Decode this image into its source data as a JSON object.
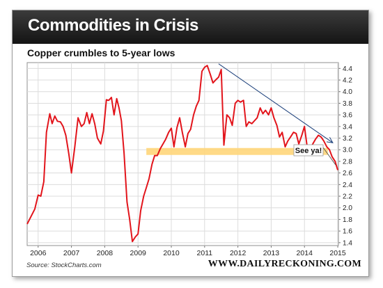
{
  "header": {
    "title": "Commodities in Crisis"
  },
  "footer": {
    "source": "Source: StockCharts.com",
    "website": "WWW.DAILYRECKONING.COM"
  },
  "colors": {
    "line": "#e2141b",
    "band": "#ffd67a",
    "arrow": "#1b3f7a",
    "banner": "#1f1f1f"
  },
  "chart_data": {
    "type": "line",
    "title": "Copper crumbles to 5-year lows",
    "xlabel": "",
    "ylabel": "",
    "ylim": [
      1.35,
      4.5
    ],
    "xlim": [
      2005.67,
      2015.02
    ],
    "y_axis_position": "right",
    "grid": true,
    "x_ticks": [
      2006,
      2007,
      2008,
      2009,
      2010,
      2011,
      2012,
      2013,
      2014,
      2015
    ],
    "x_tick_labels": [
      "2006",
      "2007",
      "2008",
      "2009",
      "2010",
      "2011",
      "2012",
      "2013",
      "2014",
      "2015"
    ],
    "y_ticks": [
      1.4,
      1.6,
      1.8,
      2.0,
      2.2,
      2.4,
      2.6,
      2.8,
      3.0,
      3.2,
      3.4,
      3.6,
      3.8,
      4.0,
      4.2,
      4.4
    ],
    "y_tick_labels": [
      "1.4",
      "1.6",
      "1.8",
      "2.0",
      "2.2",
      "2.4",
      "2.6",
      "2.8",
      "3.0",
      "3.2",
      "3.4",
      "3.6",
      "3.8",
      "4.0",
      "4.2",
      "4.4"
    ],
    "series": [
      {
        "x": [
          2005.67,
          2005.9,
          2006.0,
          2006.08,
          2006.17,
          2006.25,
          2006.35,
          2006.42,
          2006.5,
          2006.58,
          2006.67,
          2006.75,
          2006.83,
          2006.92,
          2007.0,
          2007.1,
          2007.2,
          2007.3,
          2007.38,
          2007.46,
          2007.54,
          2007.62,
          2007.7,
          2007.78,
          2007.88,
          2007.96,
          2008.05,
          2008.12,
          2008.2,
          2008.28,
          2008.36,
          2008.43,
          2008.5,
          2008.58,
          2008.67,
          2008.75,
          2008.83,
          2008.92,
          2009.0,
          2009.08,
          2009.17,
          2009.25,
          2009.33,
          2009.42,
          2009.5,
          2009.58,
          2009.67,
          2009.75,
          2009.83,
          2009.92,
          2010.0,
          2010.08,
          2010.17,
          2010.25,
          2010.33,
          2010.42,
          2010.5,
          2010.58,
          2010.67,
          2010.75,
          2010.83,
          2010.92,
          2011.0,
          2011.08,
          2011.17,
          2011.25,
          2011.33,
          2011.42,
          2011.5,
          2011.58,
          2011.67,
          2011.75,
          2011.83,
          2011.92,
          2012.0,
          2012.08,
          2012.17,
          2012.25,
          2012.33,
          2012.42,
          2012.5,
          2012.58,
          2012.67,
          2012.75,
          2012.83,
          2012.92,
          2013.0,
          2013.08,
          2013.17,
          2013.25,
          2013.33,
          2013.42,
          2013.5,
          2013.58,
          2013.67,
          2013.75,
          2013.83,
          2013.92,
          2014.0,
          2014.08,
          2014.17,
          2014.25,
          2014.33,
          2014.42,
          2014.5,
          2014.58,
          2014.67,
          2014.75,
          2014.83,
          2014.92,
          2015.0
        ],
        "y": [
          1.72,
          1.98,
          2.22,
          2.2,
          2.45,
          3.3,
          3.62,
          3.45,
          3.58,
          3.49,
          3.48,
          3.4,
          3.25,
          2.93,
          2.6,
          3.05,
          3.55,
          3.4,
          3.45,
          3.64,
          3.45,
          3.62,
          3.45,
          3.2,
          3.1,
          3.32,
          3.86,
          3.85,
          3.9,
          3.6,
          3.88,
          3.72,
          3.5,
          2.95,
          2.1,
          1.8,
          1.42,
          1.5,
          1.55,
          1.95,
          2.2,
          2.35,
          2.5,
          2.75,
          2.9,
          2.9,
          3.02,
          3.1,
          3.18,
          3.3,
          3.37,
          3.05,
          3.38,
          3.55,
          3.3,
          3.05,
          3.28,
          3.35,
          3.6,
          3.75,
          3.85,
          4.35,
          4.42,
          4.45,
          4.3,
          4.15,
          4.2,
          4.25,
          4.38,
          3.08,
          3.6,
          3.55,
          3.42,
          3.8,
          3.85,
          3.82,
          3.85,
          3.4,
          3.48,
          3.45,
          3.5,
          3.55,
          3.72,
          3.62,
          3.68,
          3.6,
          3.72,
          3.55,
          3.42,
          3.22,
          3.3,
          3.05,
          3.15,
          3.22,
          3.3,
          3.28,
          3.1,
          3.25,
          3.4,
          3.05,
          3.02,
          3.1,
          3.18,
          3.25,
          3.22,
          3.15,
          3.05,
          3.0,
          2.88,
          2.8,
          2.65
        ]
      }
    ],
    "annotations": {
      "support_band": {
        "y": 2.97,
        "x_start": 2009.25,
        "x_end": 2014.7
      },
      "trend_arrow": {
        "from": [
          2011.42,
          4.48
        ],
        "to": [
          2014.85,
          3.12
        ]
      },
      "callout": {
        "text": "See ya!",
        "points_to": [
          2014.98,
          2.7
        ]
      }
    }
  }
}
